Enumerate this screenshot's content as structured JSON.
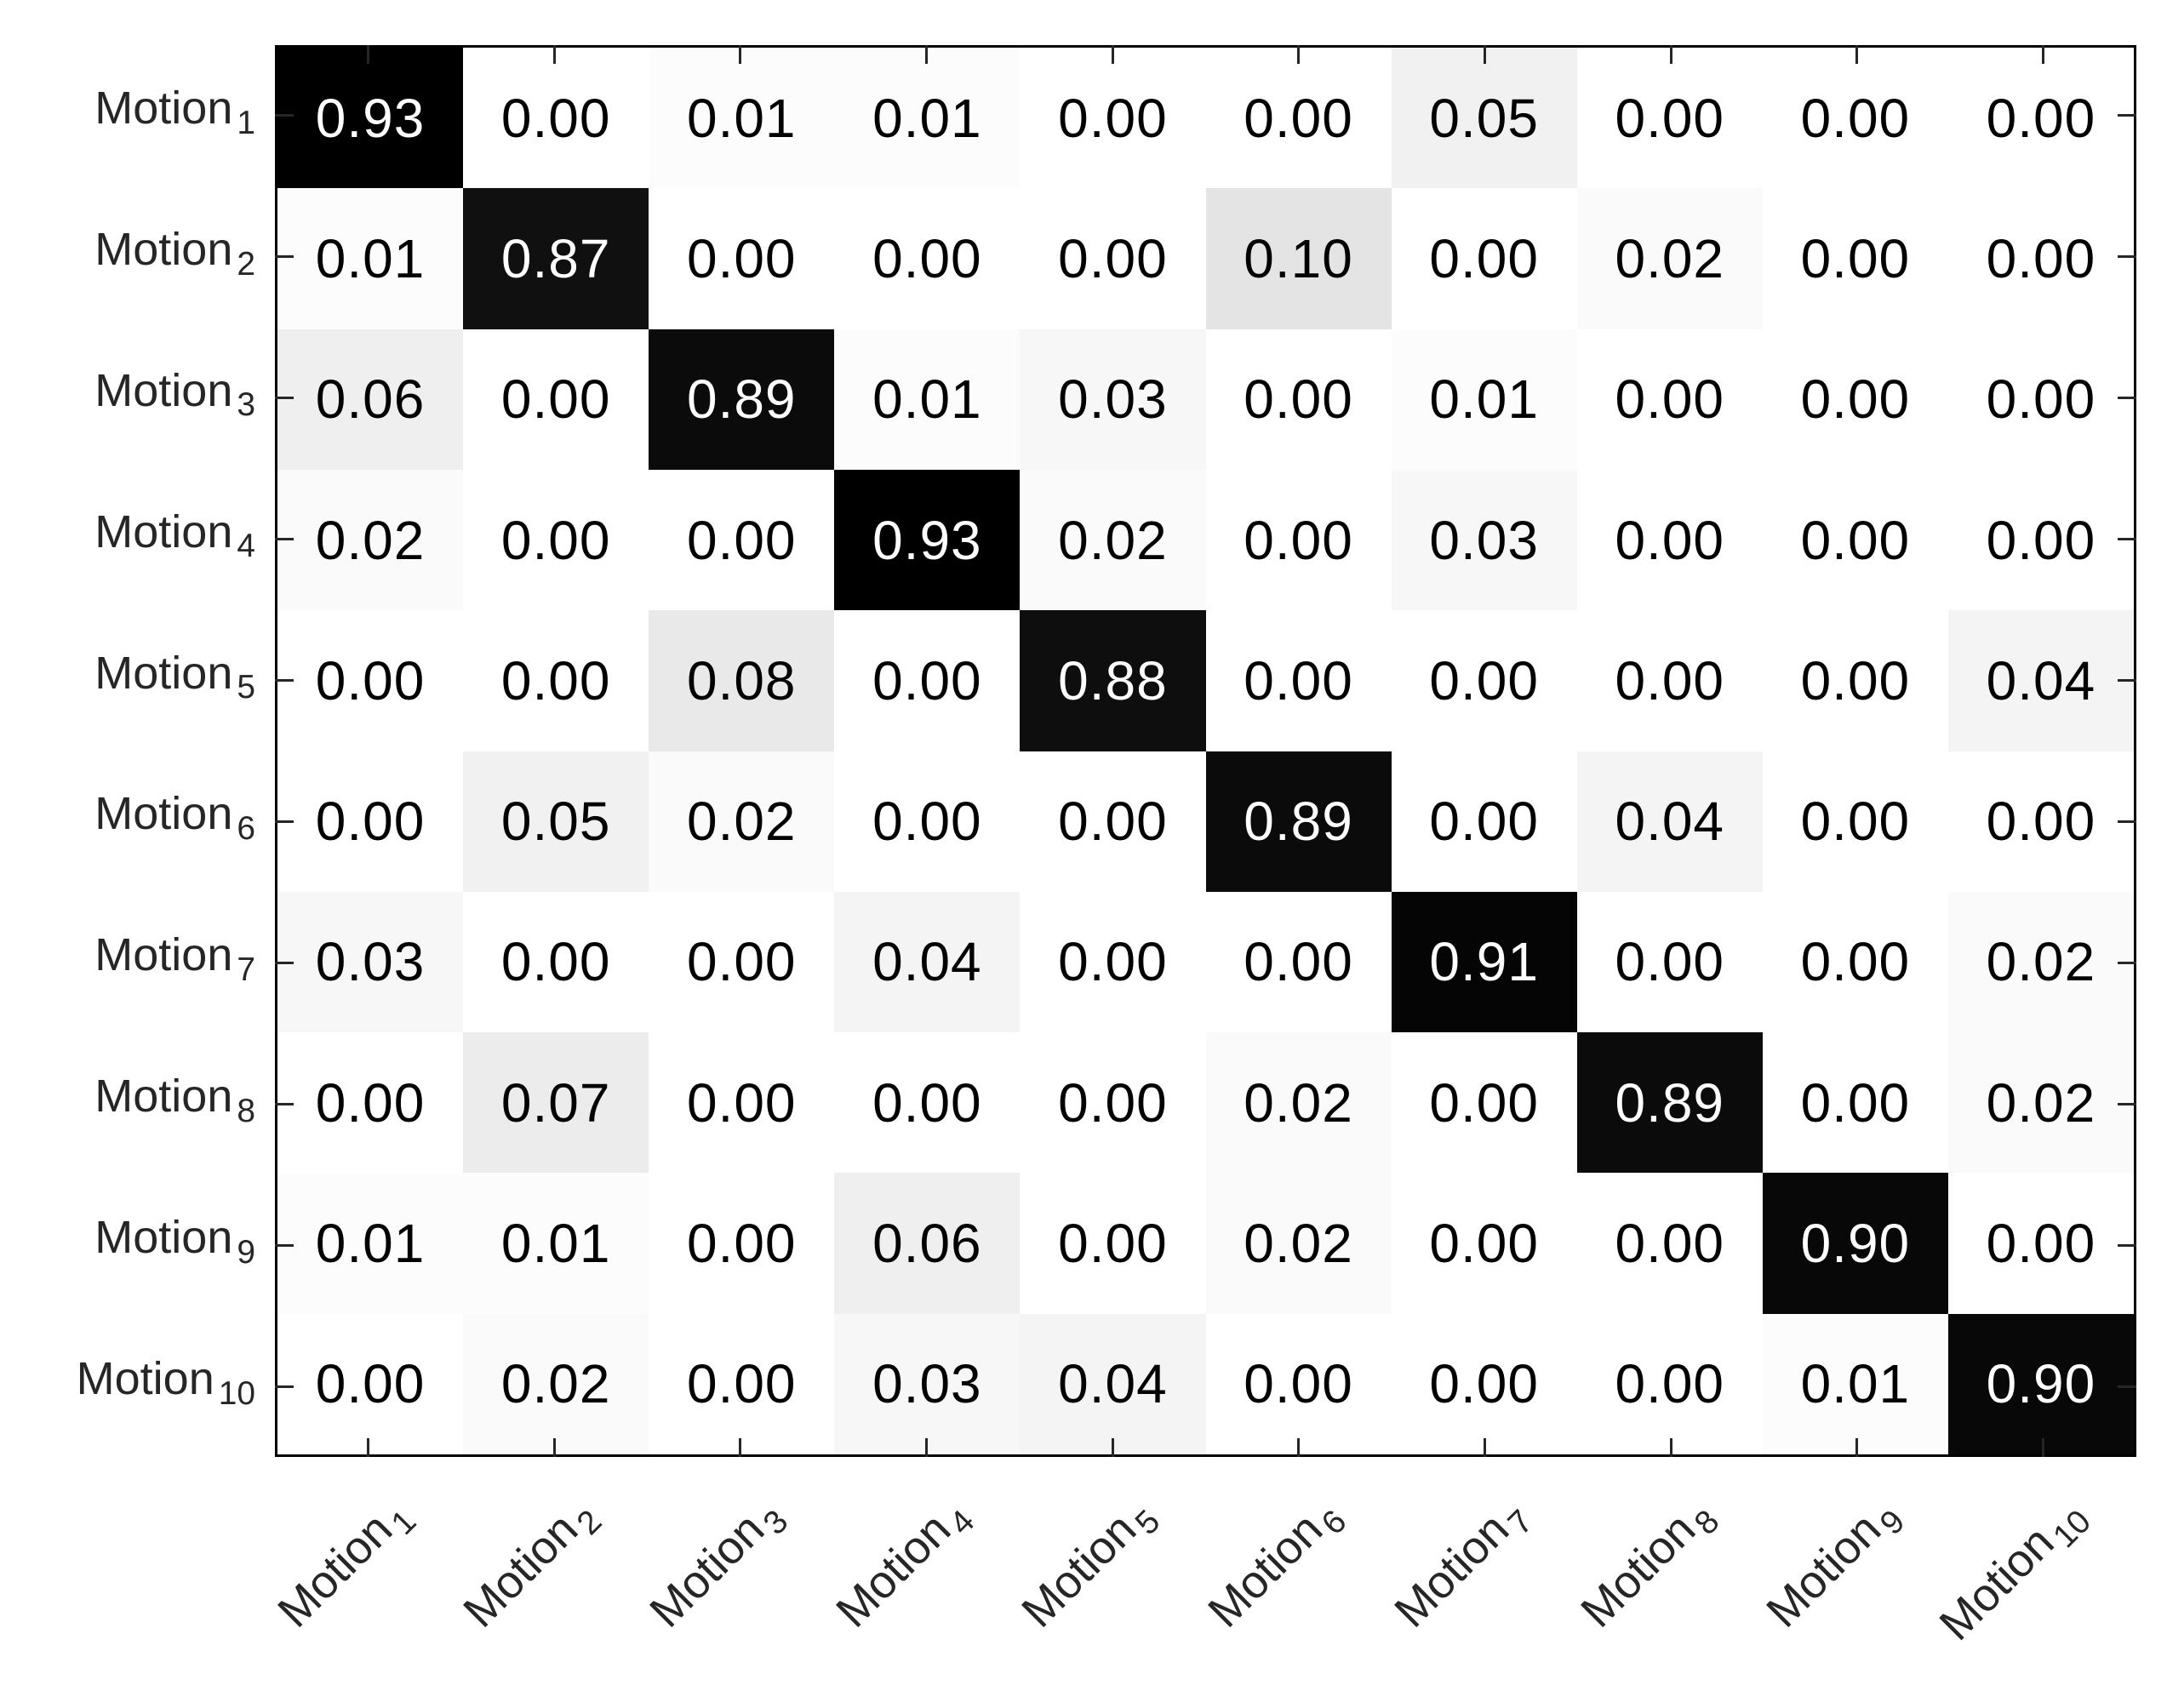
{
  "figure": {
    "title": "",
    "background_color": "#ffffff",
    "frame_color": "#000000",
    "tick_color": "#262626",
    "label_color": "#262626",
    "cell_text_dark": "#000000",
    "cell_text_light": "#ffffff"
  },
  "chart_data": {
    "type": "heatmap",
    "title": "",
    "xlabel": "",
    "ylabel": "",
    "legend": "none",
    "grid": "off",
    "x_tick_rotation_deg": 45,
    "tick_direction": "inward",
    "label_base": "Motion",
    "row_labels": [
      "Motion 1",
      "Motion 2",
      "Motion 3",
      "Motion 4",
      "Motion 5",
      "Motion 6",
      "Motion 7",
      "Motion 8",
      "Motion 9",
      "Motion 10"
    ],
    "row_subscripts": [
      "1",
      "2",
      "3",
      "4",
      "5",
      "6",
      "7",
      "8",
      "9",
      "10"
    ],
    "col_labels": [
      "Motion 1",
      "Motion 2",
      "Motion 3",
      "Motion 4",
      "Motion 5",
      "Motion 6",
      "Motion 7",
      "Motion 8",
      "Motion 9",
      "Motion 10"
    ],
    "col_subscripts": [
      "1",
      "2",
      "3",
      "4",
      "5",
      "6",
      "7",
      "8",
      "9",
      "10"
    ],
    "value_decimals": 2,
    "colormap": {
      "min_value_color": "#ffffff",
      "max_value_color": "#000000",
      "scale_max": 0.93
    },
    "matrix": [
      [
        0.93,
        0.0,
        0.01,
        0.01,
        0.0,
        0.0,
        0.05,
        0.0,
        0.0,
        0.0
      ],
      [
        0.01,
        0.87,
        0.0,
        0.0,
        0.0,
        0.1,
        0.0,
        0.02,
        0.0,
        0.0
      ],
      [
        0.06,
        0.0,
        0.89,
        0.01,
        0.03,
        0.0,
        0.01,
        0.0,
        0.0,
        0.0
      ],
      [
        0.02,
        0.0,
        0.0,
        0.93,
        0.02,
        0.0,
        0.03,
        0.0,
        0.0,
        0.0
      ],
      [
        0.0,
        0.0,
        0.08,
        0.0,
        0.88,
        0.0,
        0.0,
        0.0,
        0.0,
        0.04
      ],
      [
        0.0,
        0.05,
        0.02,
        0.0,
        0.0,
        0.89,
        0.0,
        0.04,
        0.0,
        0.0
      ],
      [
        0.03,
        0.0,
        0.0,
        0.04,
        0.0,
        0.0,
        0.91,
        0.0,
        0.0,
        0.02
      ],
      [
        0.0,
        0.07,
        0.0,
        0.0,
        0.0,
        0.02,
        0.0,
        0.89,
        0.0,
        0.02
      ],
      [
        0.01,
        0.01,
        0.0,
        0.06,
        0.0,
        0.02,
        0.0,
        0.0,
        0.9,
        0.0
      ],
      [
        0.0,
        0.02,
        0.0,
        0.03,
        0.04,
        0.0,
        0.0,
        0.0,
        0.01,
        0.9
      ]
    ]
  }
}
